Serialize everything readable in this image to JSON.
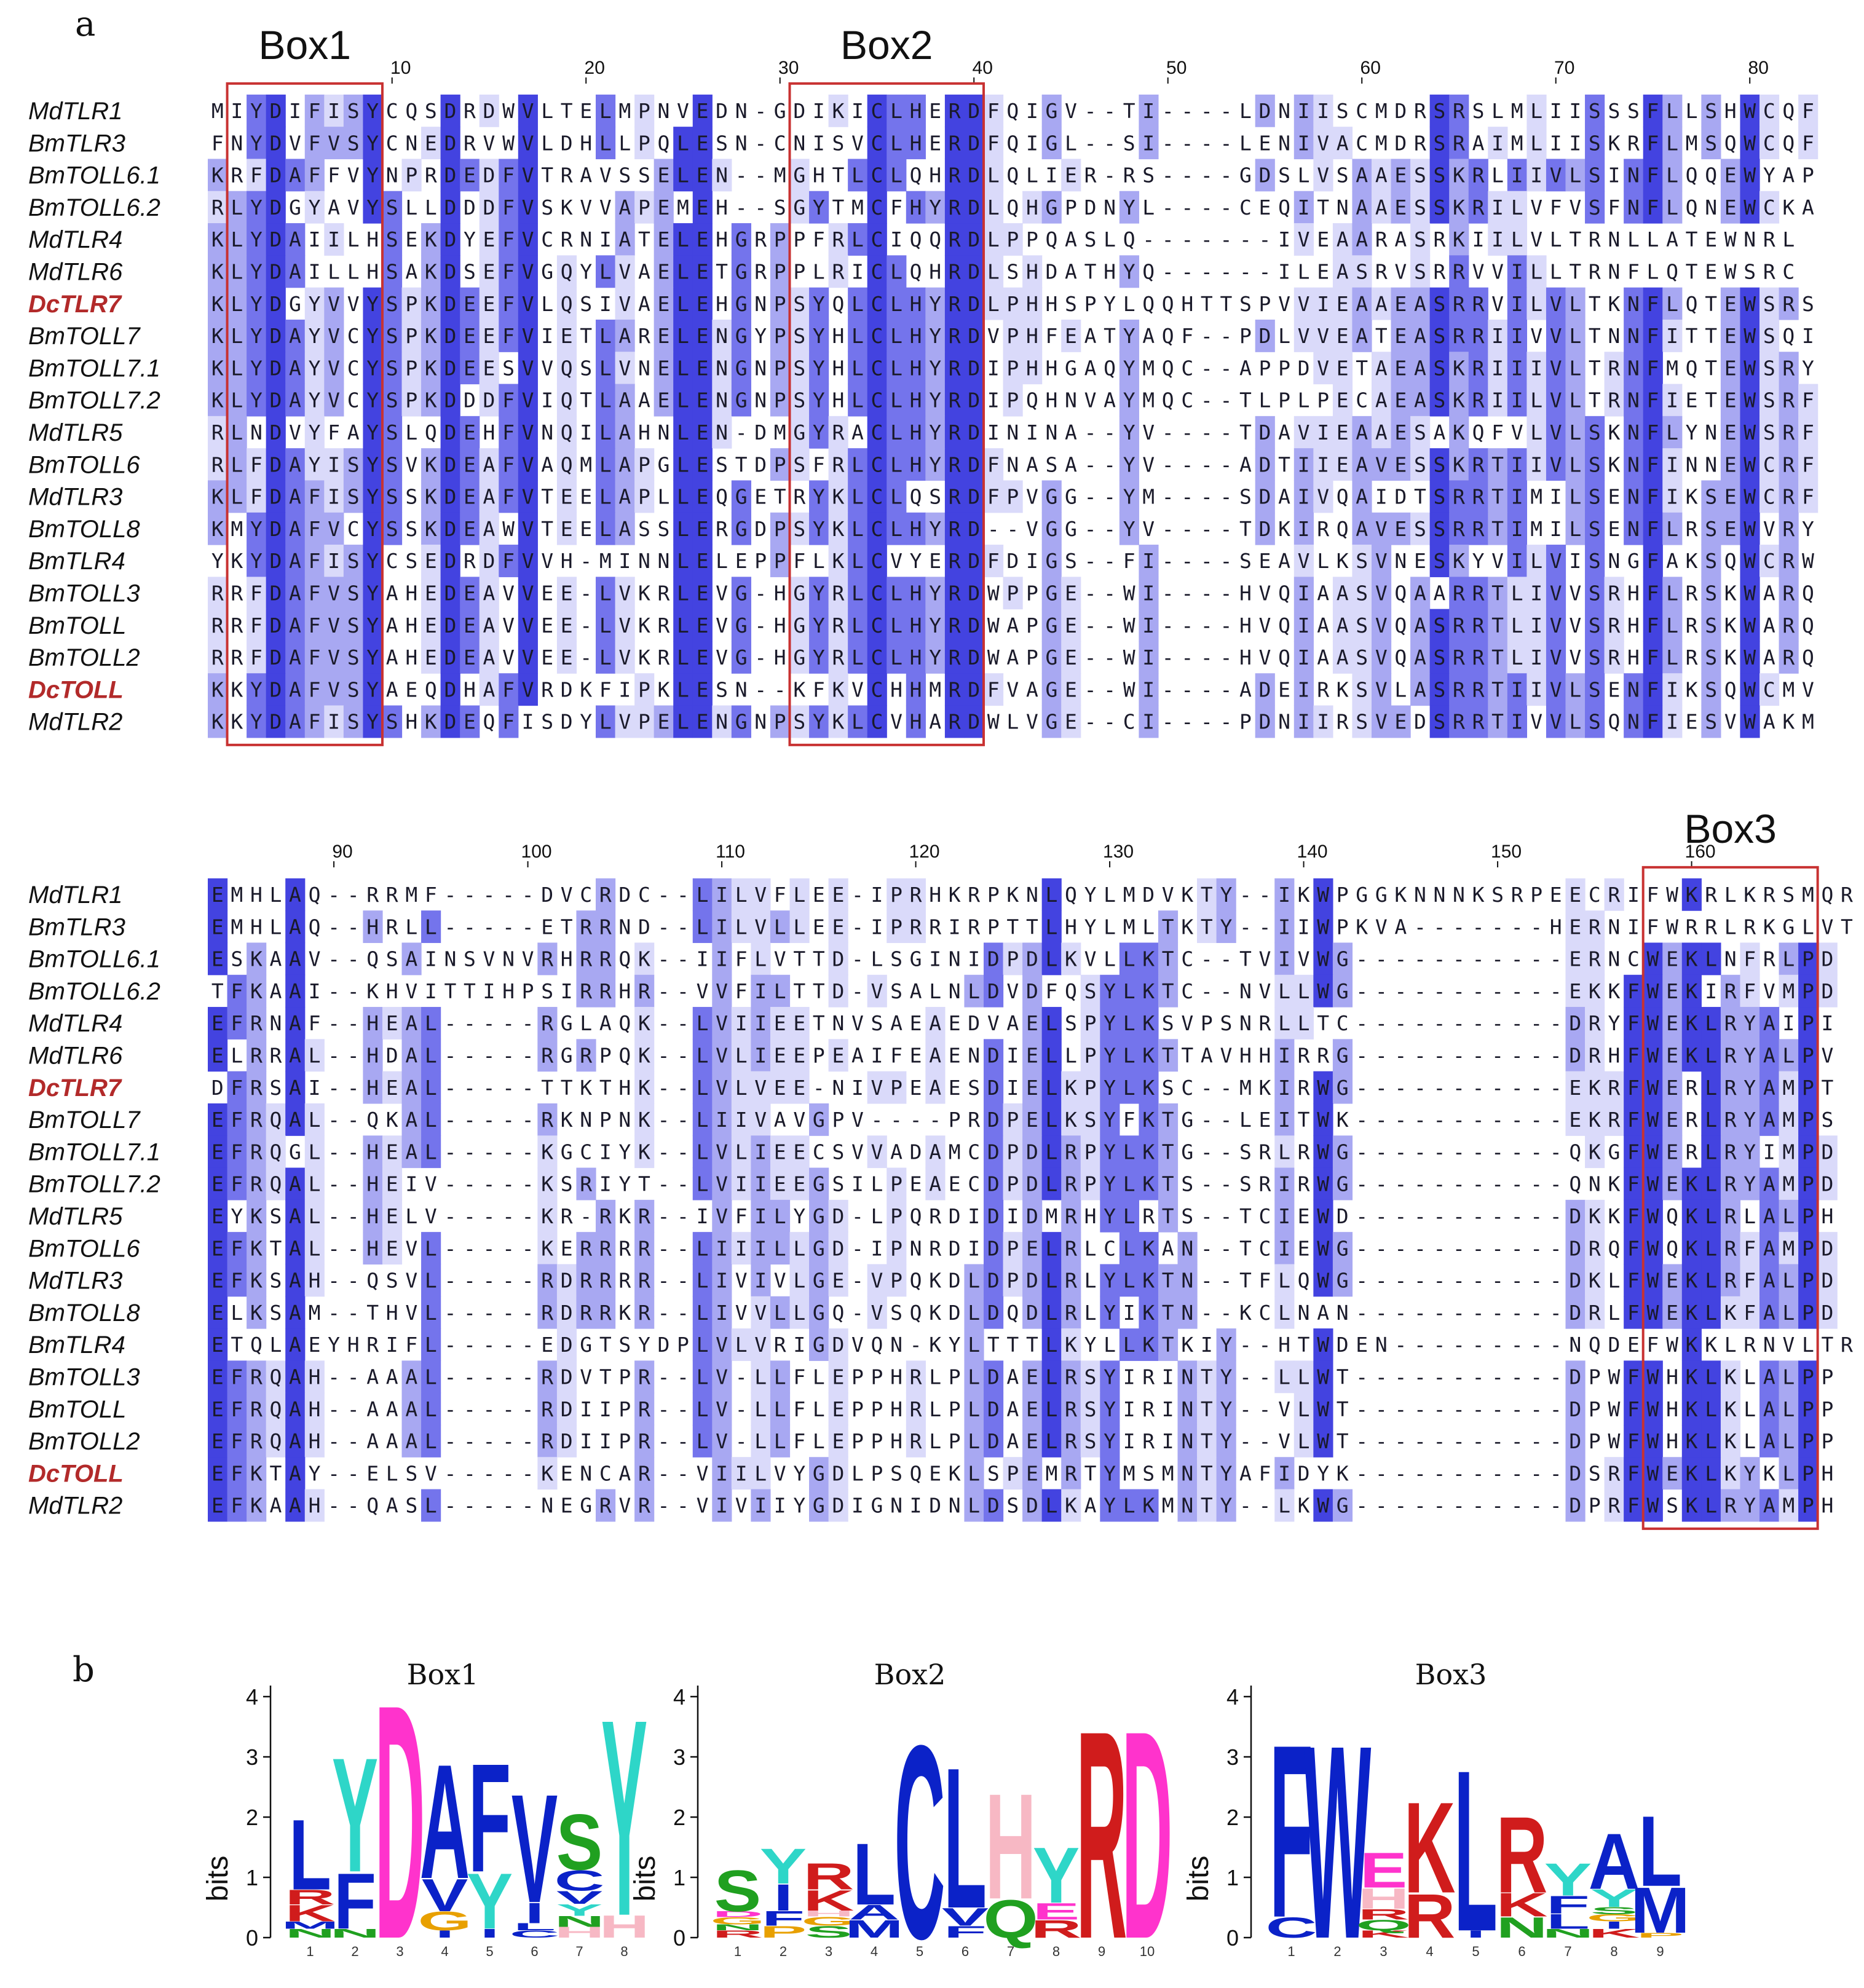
{
  "panel_a_label": "a",
  "panel_b_label": "b",
  "colors": {
    "conservation": [
      "#ffffff",
      "#dadafa",
      "#a8a8f2",
      "#7474ec",
      "#4343e0"
    ],
    "box_border": "#c83232",
    "highlight_name": "#b22a2a",
    "aa_colors": {
      "D": "#ff33cc",
      "E": "#ff33cc",
      "C": "#0b22c8",
      "F": "#0b22c8",
      "I": "#0b22c8",
      "L": "#0b22c8",
      "M": "#0b22c8",
      "V": "#0b22c8",
      "W": "#0b22c8",
      "A": "#0b22c8",
      "R": "#d01c1c",
      "K": "#d01c1c",
      "H": "#f7b8c4",
      "Y": "#2ed6c8",
      "Q": "#20a020",
      "N": "#20a020",
      "S": "#20a020",
      "T": "#20a020",
      "G": "#e8a000",
      "P": "#e8a000"
    }
  },
  "sequence_names": [
    "MdTLR1",
    "BmTLR3",
    "BmTOLL6.1",
    "BmTOLL6.2",
    "MdTLR4",
    "MdTLR6",
    "DcTLR7",
    "BmTOLL7",
    "BmTOLL7.1",
    "BmTOLL7.2",
    "MdTLR5",
    "BmTOLL6",
    "MdTLR3",
    "BmTOLL8",
    "BmTLR4",
    "BmTOLL3",
    "BmTOLL",
    "BmTOLL2",
    "DcTOLL",
    "MdTLR2"
  ],
  "highlighted_sequences": [
    "DcTLR7",
    "DcTOLL"
  ],
  "alignment": {
    "blocks": [
      {
        "ruler": [
          "10",
          "20",
          "30",
          "40",
          "50",
          "60",
          "70",
          "80"
        ],
        "ruler_positions": [
          10,
          20,
          30,
          40,
          50,
          60,
          70,
          80
        ],
        "boxes": [
          {
            "label": "Box1",
            "start": 2,
            "end": 9
          },
          {
            "label": "Box2",
            "start": 31,
            "end": 40
          }
        ],
        "rows": [
          "MIYDIFISYCQSDRDWVLTELMPNVEDN-GDIKICLHERDFQIGV--TI----LDNIISCMDRSRSLMLIISSSFLLSHWCQF",
          "FNYDVFVSYCNEDRVWVLDHLLPQLESN-CNISVCLHERDFQIGL--SI----LENIVACMDRSRAIMLIISKRFLMSQWCQF",
          "KRFDAFFVYNPRDEDFVTRAVSSELEN--MGHTLCLQHRDLQLIER-RS----GDSLVSAAESSKRLIIVLSINFLQQEWYAP",
          "RLYDGYAVYSLLDDDFVSKVVAPEMEH--SGYTMCFHYRDLQHGPDNYL----CEQITNAAESSKRILVFVSFNFLQNEWCKA",
          "KLYDAIILHSEKDYEFVCRNIATELEHGRPPFRLCIQQRDLPPQASLQ-------IVEAARASRKIILVLTRNLLATEWNRL",
          "KLYDAILLHSAKDSEFVGQYLVAELETGRPPLRICLQHRDLSHDATHYQ------ILEASRVSRRVVILLTRNFLQTEWSRC",
          "KLYDGYVVYSPKDEEFVLQSIVAELEHGNPSYQLCLHYRDLPHHSPYLQQHTTSPVVIEAAEASRRVILVLTKNFLQTEWSRS",
          "KLYDAYVCYSPKDEEFVIETLARELENGYPSYHLCLHYRDVPHFEATYAQF--PDLVVEATEASRRIIVVLTNNFITTEWSQI",
          "KLYDAYVCYSPKDEESVVQSLVNELENGNPSYHLCLHYRDIPHHGAQYMQC--APPDVETAEASKRIIIVLTRNFMQTEWSRY",
          "KLYDAYVCYSPKDDDFVIQTLAAELENGNPSYHLCLHYRDIPQHNVAYMQC--TLPLPECAEASKRIILVLTRNFIETEWSRF",
          "RLNDVYFAYSLQDEHFVNQILAHNLEN-DMGYRACLHYRDININA--YV----TDAVIEAAESAKQFVLVLSKNFLYNEWSRF",
          "RLFDAYISYSVKDEAFVAQMLAPGLESTDPSFRLCLHYRDFNASA--YV----ADTIIEAVESSKRTIIVLSKNFINNEWCRF",
          "KLFDAFISYSSKDEAFVTEELAPLLEQGETRYKLCLQSRDFPVGG--YM----SDAIVQAIDTSRRTIMILSENFIKSEWCRF",
          "KMYDAFVCYSSKDEAWVTEELASSLERGDPSYKLCLHYRD--VGG--YV----TDKIRQAVESSRRTIMILSENFLRSEWVRY",
          "YKYDAFISYCSEDRDFVVH-MINNLELEPPFLKLCVYERDFDIGS--FI----SEAVLKSVNESKYVILVISNGFAKSQWCRW",
          "RRFDAFVSYAHEDEAVVEE-LVKRLEVG-HGYRLCLHYRDWPPGE--WI----HVQIAASVQAARRTLIVVSRHFLRSKWARQ",
          "RRFDAFVSYAHEDEAVVEE-LVKRLEVG-HGYRLCLHYRDWAPGE--WI----HVQIAASVQASRRTLIVVSRHFLRSKWARQ",
          "RRFDAFVSYAHEDEAVVEE-LVKRLEVG-HGYRLCLHYRDWAPGE--WI----HVQIAASVQASRRTLIVVSRHFLRSKWARQ",
          "KKYDAFVSYAEQDHAFVRDKFIPKLESN--KFKVCHHMRDFVAGE--WI----ADEIRKSVLASRRTIIVLSENFIKSQWCMV",
          "KKYDAFISYSHKDEQFISDYLVPELENGNPSYKLCVHARDWLVGE--CI----PDNIIRSVEDSRRTIVVLSQNFIESVWAKM"
        ]
      },
      {
        "ruler": [
          "90",
          "100",
          "110",
          "120",
          "130",
          "140",
          "150",
          "160"
        ],
        "ruler_positions": [
          90,
          100,
          110,
          120,
          130,
          140,
          150,
          160
        ],
        "boxes": [
          {
            "label": "Box3",
            "start": 158,
            "end": 166
          }
        ],
        "rows": [
          "EMHLAQ--RRMF-----DVCRDC--LILVFLEE-IPRHKRPKNLQYLMDVKTY--IKWPGGKNNNKSRPEECRIFWKRLKRSMQR",
          "EMHLAQ--HRLL-----ETRRND--LILVLLEE-IPRRIRPTTLHYLMLTKTY--IIWPKVA-------HERNIFWRRLRKGLVT",
          "ESKAAV--QSAINSVNVRHRRQK--IIFLVTTD-LSGINIDPDLKVLLKTC--TVIVWG-----------ERNCWEKLNFRLPD",
          "TFKAAI--KHVITTIHPSIRRHR--VVFILTTD-VSALNLDVDFQSYLKTC--NVLLWG-----------EKKFWEKIRFVMPD",
          "EFRNAF--HEAL-----RGLAQK--LVIIEETNVSAEAEDVAELSPYLKSVPSNRLLTC-----------DRYFWEKLRYAIPI",
          "ELRRAL--HDAL-----RGRPQK--LVLIEEPEAIFEAENDIELLPYLKTTAVHHIRRG-----------DRHFWEKLRYALPV",
          "DFRSAI--HEAL-----TTKTHK--LVLVEE-NIVPEAESDIELKPYLKSC--MKIRWG-----------EKRFWERLRYAMPT",
          "EFRQAL--QKAL-----RKNPNK--LIIVAVGPV----PRDPELKSYFKTG--LEITWK-----------EKRFWERLRYAMPS",
          "EFRQGL--HEAL-----KGCIYK--LVLIEECSVVADAMCDPDLRPYLKTG--SRLRWG-----------QKGFWERLRYIMPD",
          "EFRQAL--HEIV-----KSRIYT--LVIIEEGSILPEAECDPDLRPYLKTS--SRIRWG-----------QNKFWEKLRYAMPD",
          "EYKSAL--HELV-----KR-RKR--IVFILYGD-LPQRDIDIDMRHYLRTS--TCIEWD-----------DKKFWQKLRLALPH",
          "EFKTAL--HEVL-----KERRRR--LIIILLGD-IPNRDIDPELRLCLKAN--TCIEWG-----------DRQFWQKLRFAMPD",
          "EFKSAH--QSVL-----RDRRRR--LIVIVLGE-VPQKDLDPDLRLYLKTN--TFLQWG-----------DKLFWEKLRFALPD",
          "ELKSAM--THVL-----RDRRKR--LIVVLLGQ-VSQKDLDQDLRLYIKTN--KCLNAN-----------DRLFWEKLKFALPD",
          "ETQLAEYHRIFL-----EDGTSYDPLVLVRIGDVQN-KYLTTTLKYLLKTKIY--HTWDEN---------NQDEFWKKLRNVLTR",
          "EFRQAH--AAAL-----RDVTPR--LV-LLFLEPPHRLPLDAELRSYIRINTY--LLWT-----------DPWFWHKLKLALPP",
          "EFRQAH--AAAL-----RDIIPR--LV-LLFLEPPHRLPLDAELRSYIRINTY--VLWT-----------DPWFWHKLKLALPP",
          "EFRQAH--AAAL-----RDIIPR--LV-LLFLEPPHRLPLDAELRSYIRINTY--VLWT-----------DPWFWHKLKLALPP",
          "EFKTAY--ELSV-----KENCAR--VIILVYGDLPSQEKLSPEMRTYMSMNTYAFIDYK-----------DSRFWEKLKYKLPH",
          "EFKAAH--QASL-----NEGRVR--VIVIIYGDIGNIDNLDSDLKAYLKMNTY--LKWG-----------DPRFWSKLRYAMPH"
        ]
      }
    ]
  },
  "logos": [
    {
      "title": "Box1",
      "ylabel": "bits",
      "yticks": [
        "0",
        "1",
        "2",
        "3",
        "4"
      ],
      "ymax": 4,
      "positions": [
        {
          "pos": "1",
          "stack": [
            [
              "N",
              0.15
            ],
            [
              "M",
              0.12
            ],
            [
              "K",
              0.28
            ],
            [
              "R",
              0.25
            ],
            [
              "L",
              1.2
            ]
          ]
        },
        {
          "pos": "2",
          "stack": [
            [
              "N",
              0.15
            ],
            [
              "F",
              0.95
            ],
            [
              "Y",
              1.95
            ]
          ]
        },
        {
          "pos": "3",
          "stack": [
            [
              "D",
              4.0
            ]
          ]
        },
        {
          "pos": "4",
          "stack": [
            [
              "I",
              0.12
            ],
            [
              "G",
              0.32
            ],
            [
              "V",
              0.55
            ],
            [
              "A",
              1.95
            ]
          ]
        },
        {
          "pos": "5",
          "stack": [
            [
              "I",
              0.15
            ],
            [
              "Y",
              0.95
            ],
            [
              "F",
              1.85
            ]
          ]
        },
        {
          "pos": "6",
          "stack": [
            [
              "C",
              0.12
            ],
            [
              "L",
              0.12
            ],
            [
              "I",
              0.35
            ],
            [
              "V",
              1.85
            ]
          ]
        },
        {
          "pos": "7",
          "stack": [
            [
              "H",
              0.18
            ],
            [
              "N",
              0.18
            ],
            [
              "Y",
              0.2
            ],
            [
              "V",
              0.22
            ],
            [
              "C",
              0.35
            ],
            [
              "S",
              0.95
            ]
          ]
        },
        {
          "pos": "8",
          "stack": [
            [
              "H",
              0.38
            ],
            [
              "Y",
              3.35
            ]
          ]
        }
      ]
    },
    {
      "title": "Box2",
      "ylabel": "bits",
      "yticks": [
        "0",
        "1",
        "2",
        "3",
        "4"
      ],
      "ymax": 4,
      "positions": [
        {
          "pos": "1",
          "stack": [
            [
              "R",
              0.12
            ],
            [
              "N",
              0.1
            ],
            [
              "G",
              0.12
            ],
            [
              "D",
              0.1
            ],
            [
              "S",
              0.7
            ]
          ]
        },
        {
          "pos": "2",
          "stack": [
            [
              "P",
              0.2
            ],
            [
              "F",
              0.25
            ],
            [
              "I",
              0.45
            ],
            [
              "Y",
              0.6
            ]
          ]
        },
        {
          "pos": "3",
          "stack": [
            [
              "S",
              0.2
            ],
            [
              "G",
              0.15
            ],
            [
              "H",
              0.1
            ],
            [
              "K",
              0.35
            ],
            [
              "R",
              0.45
            ]
          ]
        },
        {
          "pos": "4",
          "stack": [
            [
              "M",
              0.3
            ],
            [
              "A",
              0.25
            ],
            [
              "L",
              1.05
            ]
          ]
        },
        {
          "pos": "5",
          "stack": [
            [
              "C",
              3.3
            ]
          ]
        },
        {
          "pos": "6",
          "stack": [
            [
              "F",
              0.2
            ],
            [
              "V",
              0.3
            ],
            [
              "L",
              2.4
            ]
          ]
        },
        {
          "pos": "7",
          "stack": [
            [
              "Q",
              0.65
            ],
            [
              "H",
              1.8
            ]
          ]
        },
        {
          "pos": "8",
          "stack": [
            [
              "R",
              0.3
            ],
            [
              "E",
              0.28
            ],
            [
              "Y",
              0.95
            ]
          ]
        },
        {
          "pos": "9",
          "stack": [
            [
              "R",
              3.55
            ]
          ]
        },
        {
          "pos": "10",
          "stack": [
            [
              "D",
              3.55
            ]
          ]
        }
      ]
    },
    {
      "title": "Box3",
      "ylabel": "bits",
      "yticks": [
        "0",
        "1",
        "2",
        "3",
        "4"
      ],
      "ymax": 4,
      "positions": [
        {
          "pos": "1",
          "stack": [
            [
              "C",
              0.35
            ],
            [
              "F",
              2.95
            ]
          ]
        },
        {
          "pos": "2",
          "stack": [
            [
              "W",
              3.3
            ]
          ]
        },
        {
          "pos": "3",
          "stack": [
            [
              "K",
              0.12
            ],
            [
              "Q",
              0.18
            ],
            [
              "R",
              0.18
            ],
            [
              "H",
              0.35
            ],
            [
              "E",
              0.6
            ]
          ]
        },
        {
          "pos": "4",
          "stack": [
            [
              "R",
              0.75
            ],
            [
              "K",
              1.55
            ]
          ]
        },
        {
          "pos": "5",
          "stack": [
            [
              "I",
              0.12
            ],
            [
              "L",
              2.75
            ]
          ]
        },
        {
          "pos": "6",
          "stack": [
            [
              "N",
              0.35
            ],
            [
              "K",
              0.4
            ],
            [
              "R",
              1.3
            ]
          ]
        },
        {
          "pos": "7",
          "stack": [
            [
              "N",
              0.15
            ],
            [
              "L",
              0.25
            ],
            [
              "F",
              0.3
            ],
            [
              "Y",
              0.55
            ]
          ]
        },
        {
          "pos": "8",
          "stack": [
            [
              "K",
              0.15
            ],
            [
              "I",
              0.12
            ],
            [
              "G",
              0.12
            ],
            [
              "S",
              0.12
            ],
            [
              "Y",
              0.3
            ],
            [
              "A",
              0.95
            ]
          ]
        },
        {
          "pos": "9",
          "stack": [
            [
              "P",
              0.08
            ],
            [
              "M",
              0.78
            ],
            [
              "L",
              1.2
            ]
          ]
        }
      ]
    }
  ]
}
